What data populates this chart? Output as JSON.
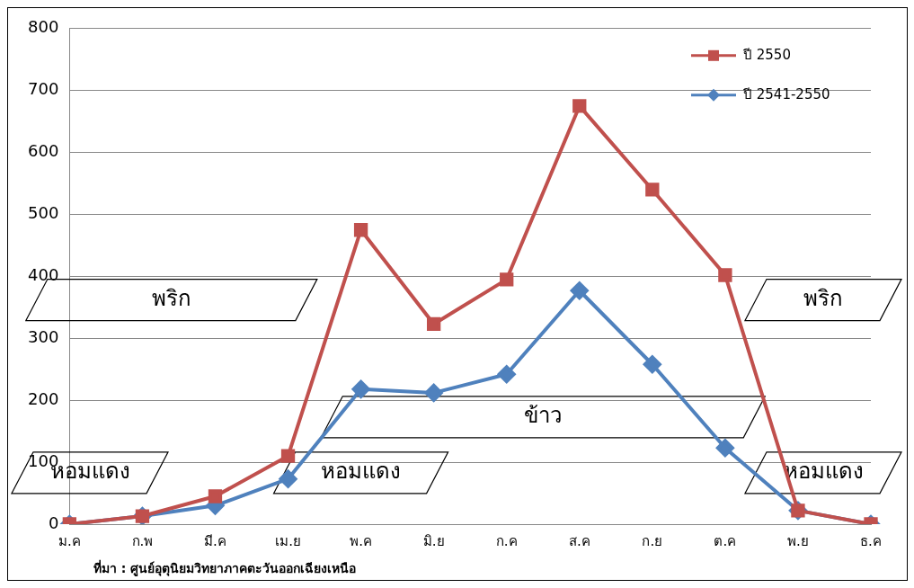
{
  "chart_data": {
    "type": "line",
    "categories": [
      "ม.ค",
      "ก.พ",
      "มี.ค",
      "เม.ย",
      "พ.ค",
      "มิ.ย",
      "ก.ค",
      "ส.ค",
      "ก.ย",
      "ต.ค",
      "พ.ย",
      "ธ.ค"
    ],
    "series": [
      {
        "name": "ปี 2550",
        "color": "#c0504d",
        "marker": "square",
        "values": [
          0,
          13,
          45,
          110,
          475,
          323,
          395,
          675,
          540,
          402,
          22,
          0
        ]
      },
      {
        "name": "ปี 2541-2550",
        "color": "#4f81bd",
        "marker": "diamond",
        "values": [
          0,
          13,
          30,
          73,
          218,
          212,
          242,
          377,
          258,
          123,
          22,
          0
        ]
      }
    ],
    "ylim": [
      0,
      800
    ],
    "yticks": [
      0,
      100,
      200,
      300,
      400,
      500,
      600,
      700,
      800
    ],
    "grid": "y",
    "legend": "top right",
    "annotations": [
      "พริก",
      "พริก",
      "ข้าว",
      "หอมแดง",
      "หอมแดง",
      "หอมแดง",
      "ที่มา : ศูนย์อุตุนิยมวิทยาภาคตะวันออกเฉียงเหนือ"
    ]
  }
}
